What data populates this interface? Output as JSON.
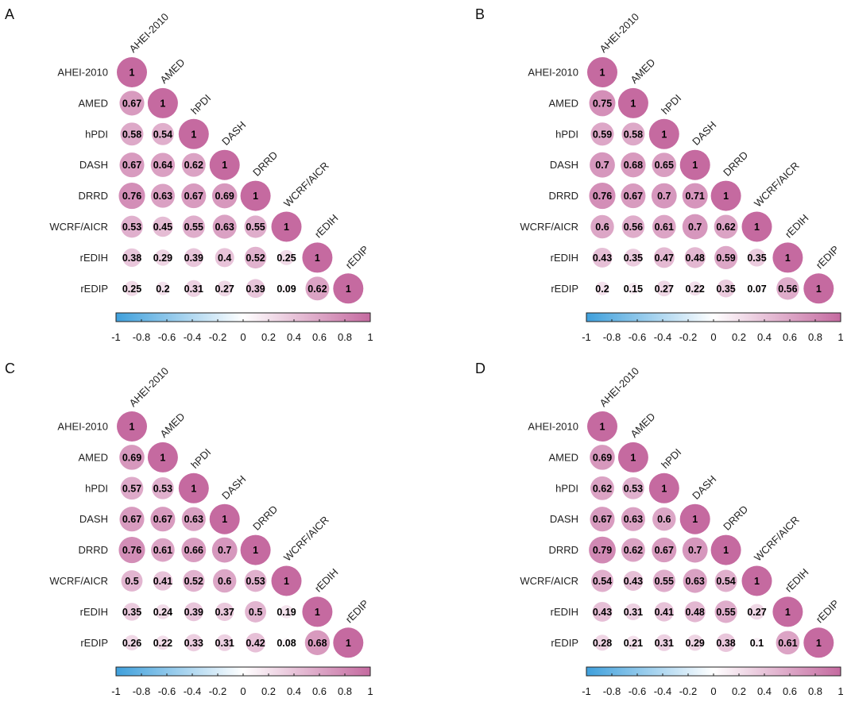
{
  "chart_data": [
    {
      "type": "heatmap",
      "panel_label": "A",
      "variables": [
        "AHEI-2010",
        "AMED",
        "hPDI",
        "DASH",
        "DRRD",
        "WCRF/AICR",
        "rEDIH",
        "rEDIP"
      ],
      "matrix_lower": [
        [
          1
        ],
        [
          0.67,
          1
        ],
        [
          0.58,
          0.54,
          1
        ],
        [
          0.67,
          0.64,
          0.62,
          1
        ],
        [
          0.76,
          0.63,
          0.67,
          0.69,
          1
        ],
        [
          0.53,
          0.45,
          0.55,
          0.63,
          0.55,
          1
        ],
        [
          0.38,
          0.29,
          0.39,
          0.4,
          0.52,
          0.25,
          1
        ],
        [
          0.25,
          0.2,
          0.31,
          0.27,
          0.39,
          0.09,
          0.62,
          1
        ]
      ],
      "colorbar": {
        "range": [
          -1,
          1
        ],
        "ticks": [
          "-1",
          "-0.8",
          "-0.6",
          "-0.4",
          "-0.2",
          "0",
          "0.2",
          "0.4",
          "0.6",
          "0.8",
          "1"
        ]
      }
    },
    {
      "type": "heatmap",
      "panel_label": "B",
      "variables": [
        "AHEI-2010",
        "AMED",
        "hPDI",
        "DASH",
        "DRRD",
        "WCRF/AICR",
        "rEDIH",
        "rEDIP"
      ],
      "matrix_lower": [
        [
          1
        ],
        [
          0.75,
          1
        ],
        [
          0.59,
          0.58,
          1
        ],
        [
          0.7,
          0.68,
          0.65,
          1
        ],
        [
          0.76,
          0.67,
          0.7,
          0.71,
          1
        ],
        [
          0.6,
          0.56,
          0.61,
          0.7,
          0.62,
          1
        ],
        [
          0.43,
          0.35,
          0.47,
          0.48,
          0.59,
          0.35,
          1
        ],
        [
          0.2,
          0.15,
          0.27,
          0.22,
          0.35,
          0.07,
          0.56,
          1
        ]
      ],
      "colorbar": {
        "range": [
          -1,
          1
        ],
        "ticks": [
          "-1",
          "-0.8",
          "-0.6",
          "-0.4",
          "-0.2",
          "0",
          "0.2",
          "0.4",
          "0.6",
          "0.8",
          "1"
        ]
      }
    },
    {
      "type": "heatmap",
      "panel_label": "C",
      "variables": [
        "AHEI-2010",
        "AMED",
        "hPDI",
        "DASH",
        "DRRD",
        "WCRF/AICR",
        "rEDIH",
        "rEDIP"
      ],
      "matrix_lower": [
        [
          1
        ],
        [
          0.69,
          1
        ],
        [
          0.57,
          0.53,
          1
        ],
        [
          0.67,
          0.67,
          0.63,
          1
        ],
        [
          0.76,
          0.61,
          0.66,
          0.7,
          1
        ],
        [
          0.5,
          0.41,
          0.52,
          0.6,
          0.53,
          1
        ],
        [
          0.35,
          0.24,
          0.39,
          0.37,
          0.5,
          0.19,
          1
        ],
        [
          0.26,
          0.22,
          0.33,
          0.31,
          0.42,
          0.08,
          0.68,
          1
        ]
      ],
      "colorbar": {
        "range": [
          -1,
          1
        ],
        "ticks": [
          "-1",
          "-0.8",
          "-0.6",
          "-0.4",
          "-0.2",
          "0",
          "0.2",
          "0.4",
          "0.6",
          "0.8",
          "1"
        ]
      }
    },
    {
      "type": "heatmap",
      "panel_label": "D",
      "variables": [
        "AHEI-2010",
        "AMED",
        "hPDI",
        "DASH",
        "DRRD",
        "WCRF/AICR",
        "rEDIH",
        "rEDIP"
      ],
      "matrix_lower": [
        [
          1
        ],
        [
          0.69,
          1
        ],
        [
          0.62,
          0.53,
          1
        ],
        [
          0.67,
          0.63,
          0.6,
          1
        ],
        [
          0.79,
          0.62,
          0.67,
          0.7,
          1
        ],
        [
          0.54,
          0.43,
          0.55,
          0.63,
          0.54,
          1
        ],
        [
          0.43,
          0.31,
          0.41,
          0.48,
          0.55,
          0.27,
          1
        ],
        [
          0.28,
          0.21,
          0.31,
          0.29,
          0.38,
          0.1,
          0.61,
          1
        ]
      ],
      "colorbar": {
        "range": [
          -1,
          1
        ],
        "ticks": [
          "-1",
          "-0.8",
          "-0.6",
          "-0.4",
          "-0.2",
          "0",
          "0.2",
          "0.4",
          "0.6",
          "0.8",
          "1"
        ]
      }
    }
  ],
  "colors": {
    "negative_end": "#3fa0dc",
    "zero": "#ffffff",
    "positive_end": "#c56aa0"
  }
}
